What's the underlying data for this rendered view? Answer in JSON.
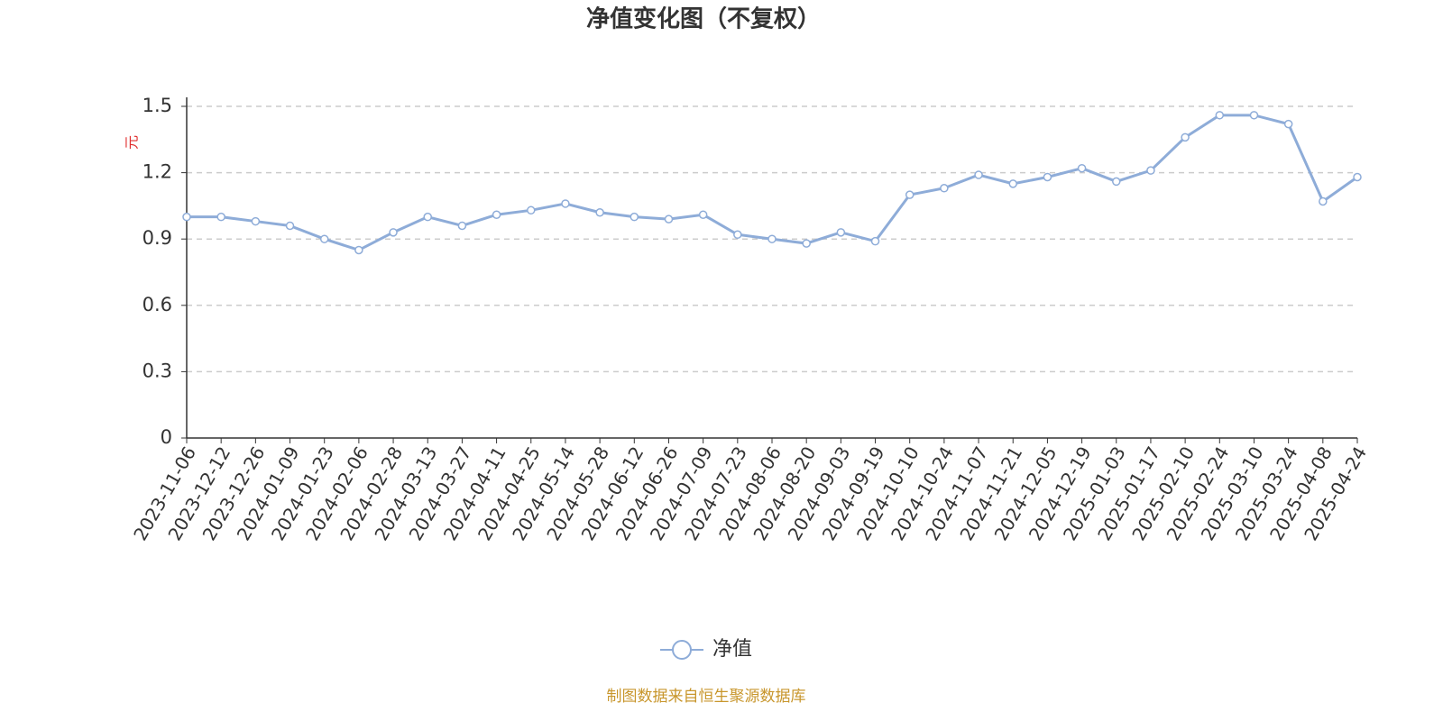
{
  "chart_data": {
    "type": "line",
    "title": "净值变化图（不复权）",
    "y_label": "元",
    "categories": [
      "2023-11-06",
      "2023-12-12",
      "2023-12-26",
      "2024-01-09",
      "2024-01-23",
      "2024-02-06",
      "2024-02-28",
      "2024-03-13",
      "2024-03-27",
      "2024-04-11",
      "2024-04-25",
      "2024-05-14",
      "2024-05-28",
      "2024-06-12",
      "2024-06-26",
      "2024-07-09",
      "2024-07-23",
      "2024-08-06",
      "2024-08-20",
      "2024-09-03",
      "2024-09-19",
      "2024-10-10",
      "2024-10-24",
      "2024-11-07",
      "2024-11-21",
      "2024-12-05",
      "2024-12-19",
      "2025-01-03",
      "2025-01-17",
      "2025-02-10",
      "2025-02-24",
      "2025-03-10",
      "2025-03-24",
      "2025-04-08",
      "2025-04-24"
    ],
    "series": [
      {
        "name": "净值",
        "color": "#8eacd8",
        "values": [
          1.0,
          1.0,
          0.98,
          0.96,
          0.9,
          0.85,
          0.93,
          1.0,
          0.96,
          1.01,
          1.03,
          1.06,
          1.02,
          1.0,
          0.99,
          1.01,
          0.92,
          0.9,
          0.88,
          0.93,
          0.89,
          1.1,
          1.13,
          1.19,
          1.15,
          1.18,
          1.22,
          1.16,
          1.21,
          1.36,
          1.46,
          1.46,
          1.42,
          1.07,
          1.18
        ]
      }
    ],
    "ylim": [
      0,
      1.5
    ],
    "yticks": [
      0,
      0.3,
      0.6,
      0.9,
      {
        "value": 1.2,
        "label": "1.2"
      },
      1.5
    ],
    "grid": true,
    "source": "制图数据来自恒生聚源数据库"
  }
}
